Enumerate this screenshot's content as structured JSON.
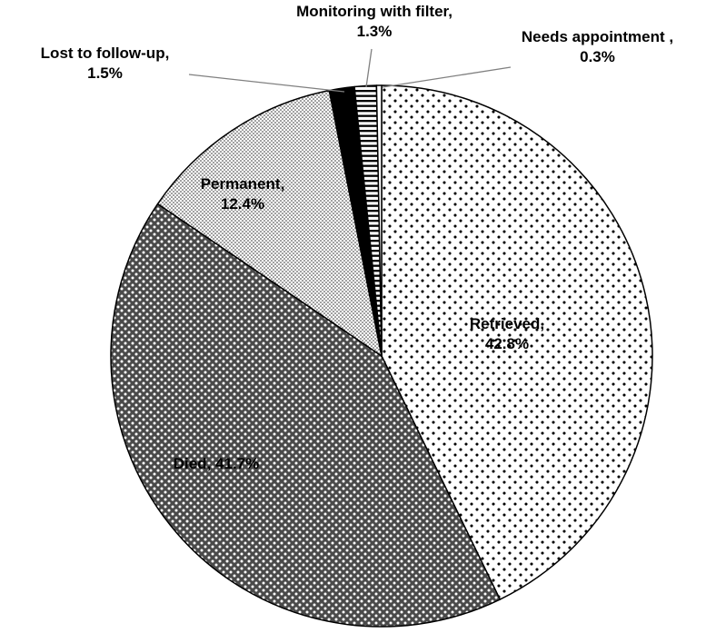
{
  "figure": {
    "title": ""
  },
  "chart_data": {
    "type": "pie",
    "title": "",
    "units": "%",
    "start_angle_deg": 0,
    "direction": "clockwise",
    "legend": "none",
    "total": 100,
    "slices": [
      {
        "name": "Retrieved",
        "value": 42.8,
        "fill": "pattern:dots-sparse",
        "label_line1": "Retrieved,",
        "label_line2": "42.8%",
        "label_placement": "inside"
      },
      {
        "name": "Died",
        "value": 41.7,
        "fill": "pattern:dark-speckle",
        "label_line1": "Died, 41.7%",
        "label_line2": "",
        "label_placement": "inside"
      },
      {
        "name": "Permanent",
        "value": 12.4,
        "fill": "pattern:fine-stipple",
        "label_line1": "Permanent,",
        "label_line2": "12.4%",
        "label_placement": "inside"
      },
      {
        "name": "Lost to follow-up",
        "value": 1.5,
        "fill": "#000000",
        "label_line1": "Lost to follow-up,",
        "label_line2": "1.5%",
        "label_placement": "outside-left"
      },
      {
        "name": "Monitoring with filter",
        "value": 1.3,
        "fill": "pattern:horizontal-lines",
        "label_line1": "Monitoring with filter,",
        "label_line2": "1.3%",
        "label_placement": "outside-top"
      },
      {
        "name": "Needs appointment",
        "value": 0.3,
        "fill": "#ffffff",
        "label_line1": "Needs appointment ,",
        "label_line2": "0.3%",
        "label_placement": "outside-right"
      }
    ],
    "colors": {
      "outline": "#000000",
      "leader_line": "#808080",
      "dark_slice_background": "#4a4a4a",
      "text": "#000000"
    }
  }
}
